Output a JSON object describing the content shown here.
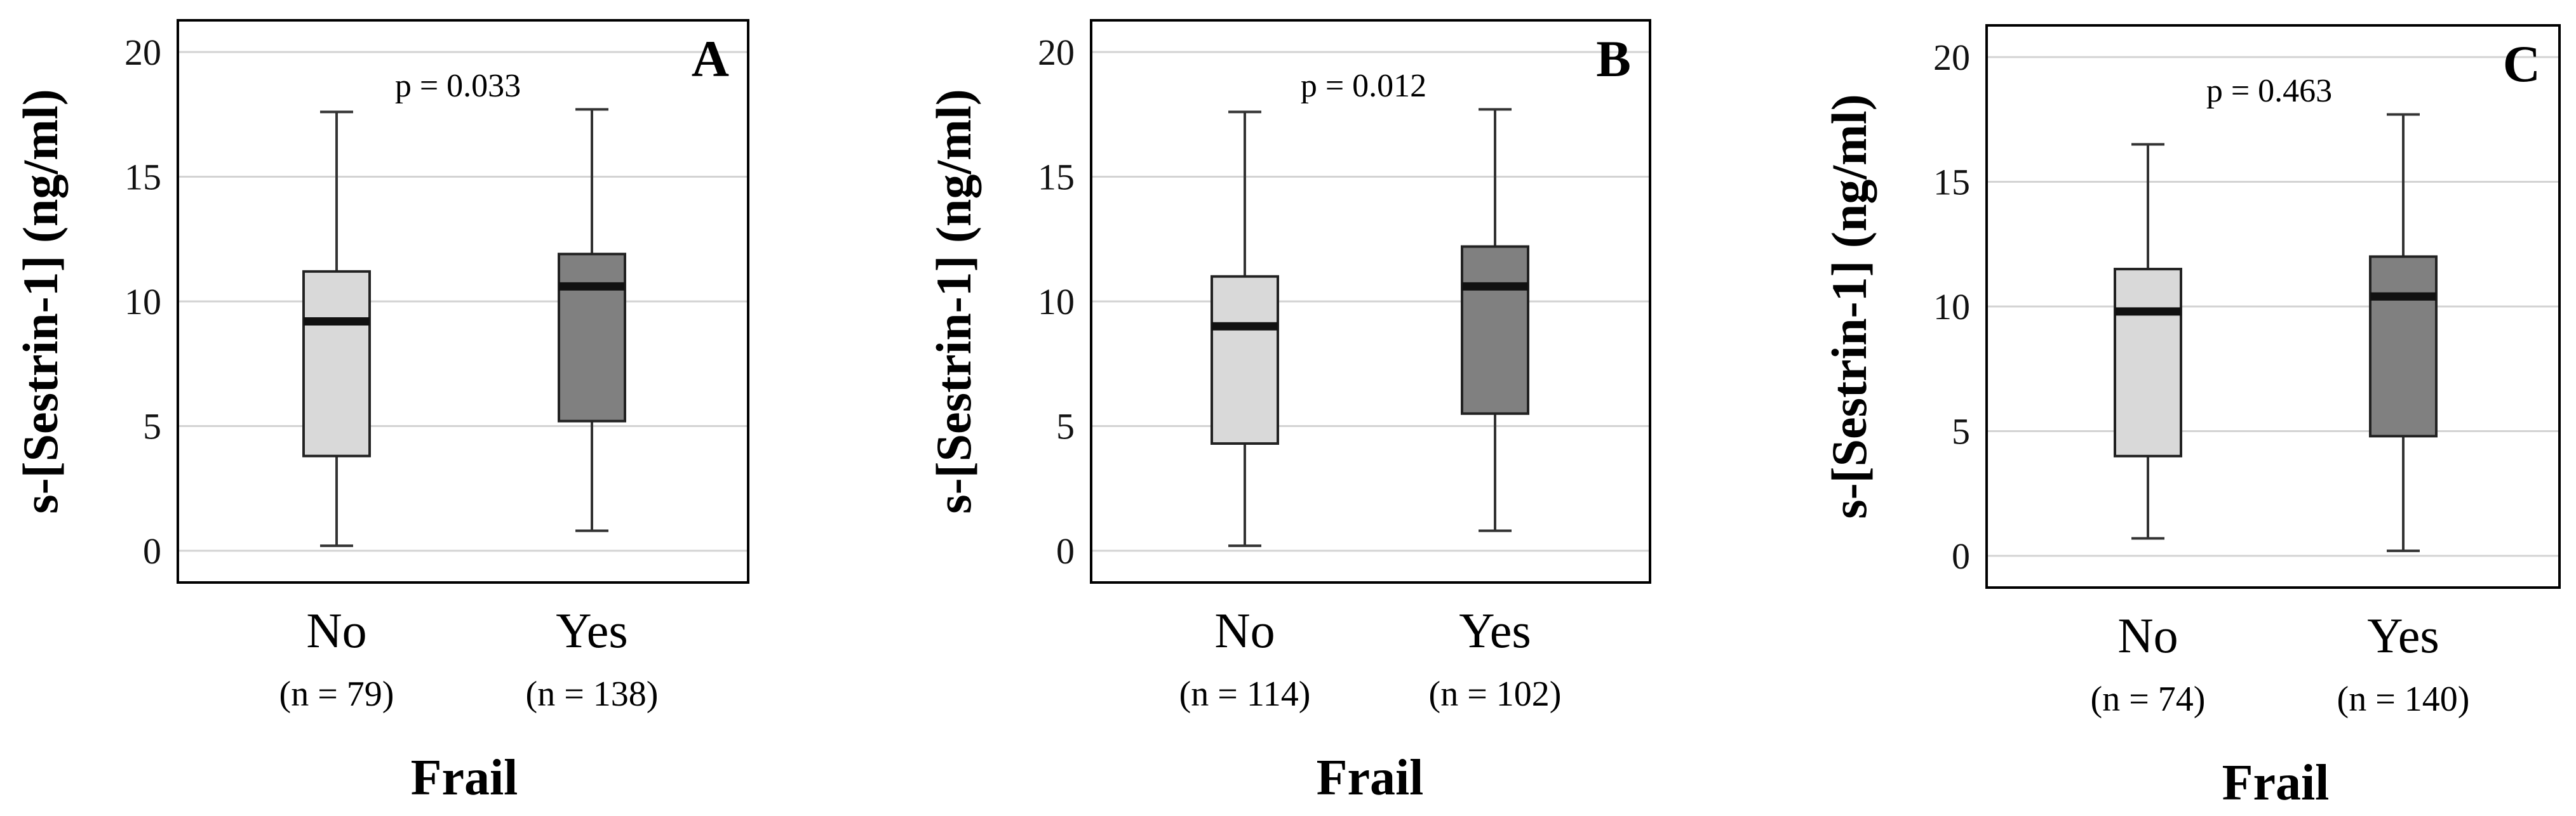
{
  "chart_data": [
    {
      "type": "boxplot",
      "panel_label": "A",
      "ylabel": "s-[Sestrin-1] (ng/ml)",
      "xlabel": "Frail",
      "ylim": [
        0,
        20
      ],
      "yticks": [
        0,
        5,
        10,
        15,
        20
      ],
      "grid": true,
      "annotation": "p  = 0.033",
      "categories": [
        "No",
        "Yes"
      ],
      "n_labels": [
        "(n = 79)",
        "(n = 138)"
      ],
      "boxes": [
        {
          "category": "No",
          "whisker_low": 0.2,
          "q1": 3.8,
          "median": 9.2,
          "q3": 11.2,
          "whisker_high": 17.6,
          "color": "#d9d9d9"
        },
        {
          "category": "Yes",
          "whisker_low": 0.8,
          "q1": 5.2,
          "median": 10.6,
          "q3": 11.9,
          "whisker_high": 17.7,
          "color": "#808080"
        }
      ]
    },
    {
      "type": "boxplot",
      "panel_label": "B",
      "ylabel": "s-[Sestrin-1] (ng/ml)",
      "xlabel": "Frail",
      "ylim": [
        0,
        20
      ],
      "yticks": [
        0,
        5,
        10,
        15,
        20
      ],
      "grid": true,
      "annotation": "p = 0.012",
      "categories": [
        "No",
        "Yes"
      ],
      "n_labels": [
        "(n = 114)",
        "(n = 102)"
      ],
      "boxes": [
        {
          "category": "No",
          "whisker_low": 0.2,
          "q1": 4.3,
          "median": 9.0,
          "q3": 11.0,
          "whisker_high": 17.6,
          "color": "#d9d9d9"
        },
        {
          "category": "Yes",
          "whisker_low": 0.8,
          "q1": 5.5,
          "median": 10.6,
          "q3": 12.2,
          "whisker_high": 17.7,
          "color": "#808080"
        }
      ]
    },
    {
      "type": "boxplot",
      "panel_label": "C",
      "ylabel": "s-[Sestrin-1] (ng/ml)",
      "xlabel": "Frail",
      "ylim": [
        0,
        20
      ],
      "yticks": [
        0,
        5,
        10,
        15,
        20
      ],
      "grid": true,
      "annotation": "p = 0.463",
      "categories": [
        "No",
        "Yes"
      ],
      "n_labels": [
        "(n = 74)",
        "(n = 140)"
      ],
      "boxes": [
        {
          "category": "No",
          "whisker_low": 0.7,
          "q1": 4.0,
          "median": 9.8,
          "q3": 11.5,
          "whisker_high": 16.5,
          "color": "#d9d9d9"
        },
        {
          "category": "Yes",
          "whisker_low": 0.2,
          "q1": 4.8,
          "median": 10.4,
          "q3": 12.0,
          "whisker_high": 17.7,
          "color": "#808080"
        }
      ]
    }
  ]
}
